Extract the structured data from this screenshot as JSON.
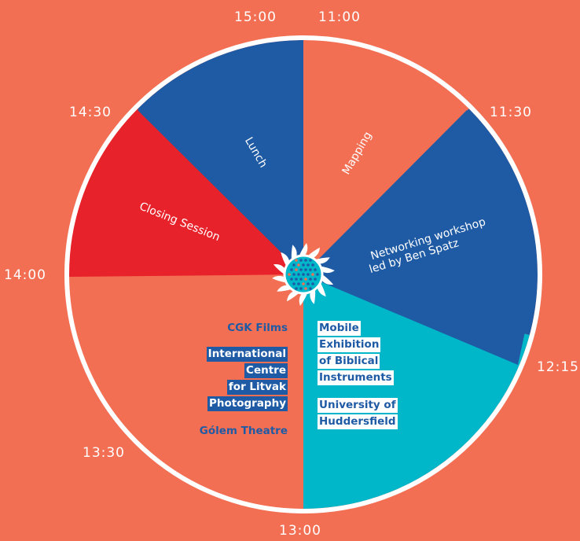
{
  "times": {
    "t1100": "11:00",
    "t1130": "11:30",
    "t1215": "12:15",
    "t1300": "13:00",
    "t1330": "13:30",
    "t1400": "14:00",
    "t1430": "14:30",
    "t1500": "15:00"
  },
  "sessions": [
    {
      "label": "Mapping",
      "start": "11:00",
      "end": "11:30",
      "color": "#f26f53"
    },
    {
      "label": "Networking workshop led by Ben Spatz",
      "start": "11:30",
      "end": "12:15",
      "color": "#1f5ba5"
    },
    {
      "label": "",
      "start": "12:15",
      "end": "13:00",
      "color": "#00b7c9"
    },
    {
      "label": "",
      "start": "13:00",
      "end": "14:00",
      "color": "#f26f53"
    },
    {
      "label": "Closing Session",
      "start": "14:00",
      "end": "14:30",
      "color": "#e8222a"
    },
    {
      "label": "Lunch",
      "start": "14:30",
      "end": "15:00",
      "color": "#1f5ba5"
    }
  ],
  "networking_lines": [
    "Networking workshop",
    "led by Ben Spatz"
  ],
  "left_group": {
    "cgk": "CGK Films",
    "icflp": [
      "International",
      "Centre",
      "for Litvak",
      "Photography"
    ],
    "golem": "Gólem Theatre"
  },
  "right_group": {
    "mobile": [
      "Mobile",
      "Exhibition",
      "of Biblical",
      "Instruments"
    ],
    "uni": [
      "University of",
      "Huddersfield"
    ]
  },
  "colors": {
    "background": "#f26f53",
    "blue": "#1f5ba5",
    "red": "#e8222a",
    "cyan": "#00b7c9",
    "white": "#ffffff"
  },
  "icons": {
    "center": "sunburst-icon"
  }
}
